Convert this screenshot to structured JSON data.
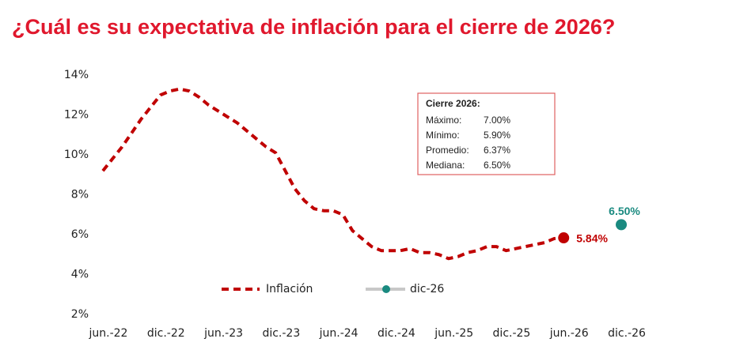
{
  "chart_data": {
    "type": "line",
    "title": "¿Cuál es su expectativa de inflación para el cierre de 2026?",
    "categories": [
      "jun.-22",
      null,
      null,
      null,
      null,
      null,
      "dic.-22",
      null,
      null,
      null,
      null,
      null,
      "jun.-23",
      null,
      null,
      null,
      null,
      null,
      "dic.-23",
      null,
      null,
      null,
      null,
      null,
      "jun.-24",
      null,
      null,
      null,
      null,
      null,
      "dic.-24",
      null,
      null,
      null,
      null,
      null,
      "jun.-25",
      null,
      null,
      null,
      null,
      null,
      "dic.-25",
      null,
      null,
      null,
      null,
      null,
      "jun.-26",
      null,
      null,
      null,
      null,
      null,
      "dic.-26"
    ],
    "series": [
      {
        "name": "Inflación",
        "color": "#c00000",
        "values": [
          9.2,
          9.8,
          10.4,
          11.1,
          11.8,
          12.4,
          13.0,
          13.2,
          13.3,
          13.2,
          12.9,
          12.5,
          12.2,
          11.9,
          11.6,
          11.2,
          10.8,
          10.4,
          10.1,
          9.2,
          8.3,
          7.7,
          7.3,
          7.2,
          7.2,
          7.0,
          6.2,
          5.8,
          5.4,
          5.2,
          5.2,
          5.2,
          5.3,
          5.1,
          5.1,
          5.0,
          4.8,
          4.9,
          5.1,
          5.2,
          5.4,
          5.4,
          5.2,
          5.3,
          5.4,
          5.5,
          5.6,
          5.8,
          5.84,
          null,
          null,
          null,
          null,
          null,
          null
        ],
        "value_labels": [
          null,
          null,
          null,
          null,
          null,
          null,
          null,
          null,
          null,
          null,
          null,
          null,
          null,
          null,
          null,
          null,
          null,
          null,
          null,
          null,
          null,
          null,
          null,
          null,
          null,
          null,
          null,
          null,
          null,
          null,
          null,
          null,
          null,
          null,
          null,
          null,
          null,
          null,
          null,
          null,
          null,
          null,
          null,
          null,
          null,
          null,
          null,
          null,
          "5.84%",
          null,
          null,
          null,
          null,
          null,
          null
        ]
      },
      {
        "name": "dic-26",
        "color": "#1a8a80",
        "line_color": "#c8c8c8",
        "values": [
          null,
          null,
          null,
          null,
          null,
          null,
          null,
          null,
          null,
          null,
          null,
          null,
          null,
          null,
          null,
          null,
          null,
          null,
          null,
          null,
          null,
          null,
          null,
          null,
          null,
          null,
          null,
          null,
          null,
          null,
          null,
          null,
          null,
          null,
          null,
          null,
          null,
          null,
          null,
          null,
          null,
          null,
          null,
          null,
          null,
          null,
          null,
          null,
          null,
          null,
          null,
          null,
          null,
          null,
          6.5
        ],
        "value_labels": [
          null,
          null,
          null,
          null,
          null,
          null,
          null,
          null,
          null,
          null,
          null,
          null,
          null,
          null,
          null,
          null,
          null,
          null,
          null,
          null,
          null,
          null,
          null,
          null,
          null,
          null,
          null,
          null,
          null,
          null,
          null,
          null,
          null,
          null,
          null,
          null,
          null,
          null,
          null,
          null,
          null,
          null,
          null,
          null,
          null,
          null,
          null,
          null,
          null,
          null,
          null,
          null,
          null,
          null,
          "6.50%"
        ]
      }
    ],
    "ylim": [
      2,
      14
    ],
    "yticks": [
      {
        "value": 2,
        "label": "2%"
      },
      {
        "value": 4,
        "label": "4%"
      },
      {
        "value": 6,
        "label": "6%"
      },
      {
        "value": 8,
        "label": "8%"
      },
      {
        "value": 10,
        "label": "10%"
      },
      {
        "value": 12,
        "label": "12%"
      },
      {
        "value": 14,
        "label": "14%"
      }
    ],
    "grid": false,
    "legend": "bottom",
    "annotation": {
      "title": "Cierre 2026:",
      "rows": [
        {
          "label": "Máximo:",
          "value": "7.00%"
        },
        {
          "label": "Mínimo:",
          "value": "5.90%"
        },
        {
          "label": "Promedio:",
          "value": "6.37%"
        },
        {
          "label": "Mediana:",
          "value": "6.50%"
        }
      ]
    }
  }
}
